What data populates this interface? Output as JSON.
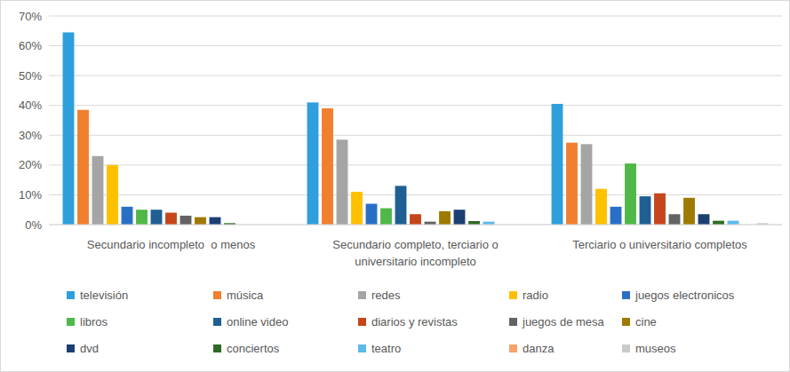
{
  "chart_data": {
    "type": "bar",
    "categories": [
      "Secundario incompleto  o menos",
      "Secundario completo, terciario o universitario incompleto",
      "Terciario o universitario completos"
    ],
    "series": [
      {
        "name": "televisión",
        "color": "#2e9fdc",
        "values": [
          64.5,
          41,
          40.5
        ]
      },
      {
        "name": "música",
        "color": "#f07f2e",
        "values": [
          38.5,
          39,
          27.5
        ]
      },
      {
        "name": "redes",
        "color": "#a5a5a5",
        "values": [
          23,
          28.5,
          27
        ]
      },
      {
        "name": "radio",
        "color": "#ffc000",
        "values": [
          20,
          11,
          12
        ]
      },
      {
        "name": "juegos electronicos",
        "color": "#2a6fc6",
        "values": [
          6,
          7,
          6
        ]
      },
      {
        "name": "libros",
        "color": "#4fb848",
        "values": [
          5,
          5.5,
          20.5
        ]
      },
      {
        "name": "online video",
        "color": "#1f5f93",
        "values": [
          5,
          13,
          9.5
        ]
      },
      {
        "name": "diarios y revistas",
        "color": "#c4461a",
        "values": [
          4,
          3.5,
          10.5
        ]
      },
      {
        "name": "juegos de mesa",
        "color": "#636363",
        "values": [
          3,
          1,
          3.5
        ]
      },
      {
        "name": "cine",
        "color": "#9e7a00",
        "values": [
          2.5,
          4.5,
          9
        ]
      },
      {
        "name": "dvd",
        "color": "#1c3f73",
        "values": [
          2.5,
          5,
          3.5
        ]
      },
      {
        "name": "conciertos",
        "color": "#2f6b26",
        "values": [
          0.5,
          1.2,
          1.3
        ]
      },
      {
        "name": "teatro",
        "color": "#5cb9ea",
        "values": [
          0,
          1,
          1.3
        ]
      },
      {
        "name": "danza",
        "color": "#f5a36b",
        "values": [
          0,
          0,
          0
        ]
      },
      {
        "name": "museos",
        "color": "#c9c9c9",
        "values": [
          0,
          0,
          0.5
        ]
      }
    ],
    "ylim": [
      0,
      70
    ],
    "yticks": [
      {
        "value": 0,
        "label": "0%"
      },
      {
        "value": 10,
        "label": "10%"
      },
      {
        "value": 20,
        "label": "20%"
      },
      {
        "value": 30,
        "label": "30%"
      },
      {
        "value": 40,
        "label": "40%"
      },
      {
        "value": 50,
        "label": "50%"
      },
      {
        "value": 60,
        "label": "60%"
      },
      {
        "value": 70,
        "label": "70%"
      }
    ],
    "grid": true,
    "legend": "bottom"
  }
}
